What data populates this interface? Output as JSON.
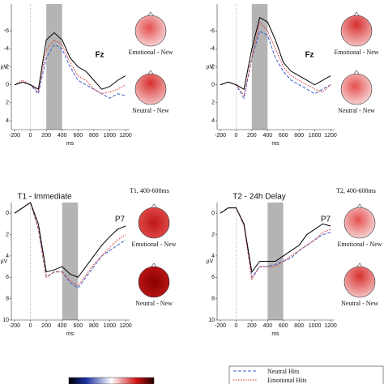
{
  "chart_data": [
    {
      "type": "line",
      "electrode": "Fz",
      "y_label": "µV",
      "x_label": "ms",
      "x": [
        -200,
        -100,
        0,
        100,
        200,
        300,
        400,
        500,
        600,
        700,
        800,
        900,
        1000,
        1100,
        1200
      ],
      "xlim": [
        -200,
        1200
      ],
      "xticks": [
        -200,
        0,
        200,
        400,
        600,
        800,
        1000,
        1200
      ],
      "ylim": [
        -9,
        5
      ],
      "yticks": [
        -6,
        -4,
        -2,
        0,
        2,
        4
      ],
      "y_inverted": true,
      "shade": [
        200,
        400
      ],
      "topo_labels": [
        "Emotional - New",
        "Neutral - New"
      ],
      "series": [
        {
          "name": "Neutral Hits",
          "color": "#3a5fcd",
          "dash": "4 2",
          "values": [
            0,
            -0.3,
            0,
            1,
            -3,
            -4.5,
            -4,
            -2,
            -0.5,
            0,
            0.5,
            1,
            1.5,
            1,
            1.2
          ]
        },
        {
          "name": "Emotional Hits",
          "color": "#e03030",
          "dash": "1.5 1.5",
          "values": [
            0,
            -0.5,
            0,
            0.8,
            -4,
            -5,
            -4.5,
            -2.5,
            -1,
            -0.5,
            0.5,
            1,
            0.8,
            0.5,
            0
          ]
        },
        {
          "color": "#000000",
          "values": [
            0,
            -0.3,
            0,
            0.5,
            -5,
            -5.8,
            -5,
            -3,
            -2,
            -1.5,
            -0.5,
            0.5,
            0.2,
            -0.5,
            -1
          ]
        }
      ]
    },
    {
      "type": "line",
      "electrode": "Fz",
      "y_label": "µV",
      "x_label": "ms",
      "x": [
        -200,
        -100,
        0,
        100,
        200,
        300,
        400,
        500,
        600,
        700,
        800,
        900,
        1000,
        1100,
        1200
      ],
      "xlim": [
        -200,
        1200
      ],
      "xticks": [
        -200,
        0,
        200,
        400,
        600,
        800,
        1000,
        1200
      ],
      "ylim": [
        -9,
        5
      ],
      "yticks": [
        -6,
        -4,
        -2,
        0,
        2,
        4
      ],
      "y_inverted": true,
      "shade": [
        200,
        400
      ],
      "topo_labels": [
        "Emotional - New",
        "Neutral - New"
      ],
      "series": [
        {
          "color": "#3a5fcd",
          "dash": "4 2",
          "values": [
            0,
            -0.3,
            0,
            1.5,
            -3,
            -6,
            -5.5,
            -3,
            -1.5,
            -0.5,
            0,
            0.5,
            1,
            0.5,
            0
          ]
        },
        {
          "color": "#e03030",
          "dash": "1.5 1.5",
          "values": [
            0,
            -0.3,
            0,
            1.2,
            -3,
            -7,
            -6,
            -4,
            -2,
            -1,
            -0.5,
            0,
            0.5,
            0.8,
            0
          ]
        },
        {
          "color": "#000000",
          "values": [
            0,
            -0.3,
            0,
            0.5,
            -4,
            -7.5,
            -7,
            -5,
            -2.5,
            -1.5,
            -1,
            -0.5,
            0,
            -0.5,
            -1
          ]
        }
      ]
    },
    {
      "type": "line",
      "title": "T1 - Immediate",
      "window": "T1, 400-600ms",
      "electrode": "P7",
      "y_label": "µV",
      "x_label": "ms",
      "x": [
        -200,
        -100,
        0,
        100,
        200,
        300,
        400,
        500,
        600,
        700,
        800,
        900,
        1000,
        1100,
        1200
      ],
      "xlim": [
        -200,
        1200
      ],
      "xticks": [
        -200,
        0,
        200,
        400,
        600,
        800,
        1000,
        1200
      ],
      "ylim": [
        -1,
        10
      ],
      "yticks": [
        0,
        2,
        4,
        6,
        8,
        10
      ],
      "y_inverted": true,
      "shade": [
        400,
        600
      ],
      "topo_labels": [
        "Emotional - New",
        "Neutral - New"
      ],
      "series": [
        {
          "color": "#3a5fcd",
          "dash": "4 2",
          "values": [
            0,
            -0.5,
            -1,
            1.5,
            6,
            5.5,
            5.5,
            6.5,
            7,
            6,
            5,
            4,
            3.5,
            3,
            2.5
          ]
        },
        {
          "color": "#e03030",
          "dash": "1.5 1.5",
          "values": [
            0,
            -0.5,
            -1,
            1.5,
            6,
            5.5,
            5.5,
            6.3,
            6.8,
            5.8,
            4.8,
            4,
            3.2,
            2.5,
            2
          ]
        },
        {
          "color": "#000000",
          "values": [
            0,
            -0.5,
            -1,
            1,
            5.5,
            5.3,
            5,
            5.7,
            6,
            5,
            4,
            3,
            2.2,
            1.5,
            1.2
          ]
        }
      ]
    },
    {
      "type": "line",
      "title": "T2 - 24h Delay",
      "window": "T2, 400-600ms",
      "electrode": "P7",
      "y_label": "µV",
      "x_label": "ms",
      "x": [
        -200,
        -100,
        0,
        100,
        200,
        300,
        400,
        500,
        600,
        700,
        800,
        900,
        1000,
        1100,
        1200
      ],
      "xlim": [
        -200,
        1200
      ],
      "xticks": [
        -200,
        0,
        200,
        400,
        600,
        800,
        1000,
        1200
      ],
      "ylim": [
        -1,
        10
      ],
      "yticks": [
        0,
        2,
        4,
        6,
        8,
        10
      ],
      "y_inverted": true,
      "shade": [
        400,
        600
      ],
      "topo_labels": [
        "Emotional - New",
        "Neutral - New"
      ],
      "series": [
        {
          "color": "#3a5fcd",
          "dash": "4 2",
          "values": [
            0,
            -0.5,
            -0.5,
            1,
            6,
            5,
            5,
            4.8,
            4.5,
            4.2,
            3.5,
            3,
            2.5,
            2,
            1.8
          ]
        },
        {
          "color": "#e03030",
          "dash": "1.5 1.5",
          "values": [
            0,
            -0.5,
            -0.5,
            1.2,
            6.2,
            5,
            5,
            5,
            4.5,
            4,
            3.5,
            3,
            2.5,
            1.8,
            1.5
          ]
        },
        {
          "color": "#000000",
          "values": [
            0,
            -0.5,
            -0.5,
            1,
            5.5,
            4.5,
            4.5,
            4.5,
            4,
            3.5,
            3,
            2,
            1.5,
            1,
            1.2
          ]
        }
      ]
    }
  ]
}
